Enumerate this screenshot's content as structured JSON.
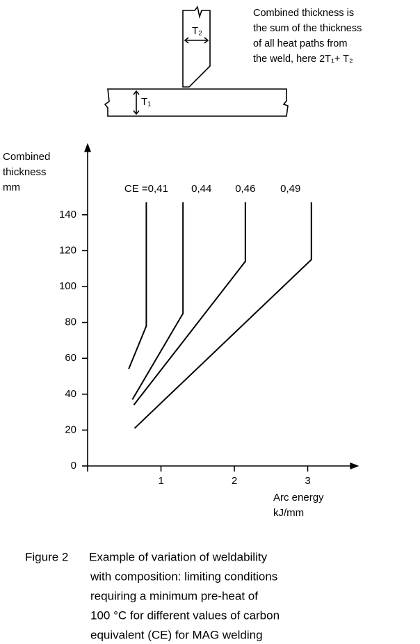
{
  "diagram": {
    "t2_label": "T₂",
    "t1_label": "T₁",
    "note": [
      "Combined thickness is",
      "the sum of the thickness",
      "of all heat paths from",
      "the weld, here 2T₁+ T₂"
    ]
  },
  "chart_data": {
    "type": "line",
    "color": "#000000",
    "ylabel": [
      "Combined",
      "thickness",
      "mm"
    ],
    "xlabel": [
      "Arc energy",
      "kJ/mm"
    ],
    "xlim": [
      0,
      3.7
    ],
    "ylim": [
      0,
      180
    ],
    "xticks": [
      1,
      2,
      3
    ],
    "yticks": [
      0,
      20,
      40,
      60,
      80,
      100,
      120,
      140
    ],
    "series": [
      {
        "name": "CE =0,41",
        "x": [
          0.56,
          0.8,
          0.8
        ],
        "values": [
          54,
          78,
          147
        ]
      },
      {
        "name": "0,44",
        "x": [
          0.61,
          1.3,
          1.3
        ],
        "values": [
          37,
          85,
          147
        ]
      },
      {
        "name": "0,46",
        "x": [
          0.63,
          2.15,
          2.15
        ],
        "values": [
          34,
          114,
          147
        ]
      },
      {
        "name": "0,49",
        "x": [
          0.64,
          3.05,
          3.05
        ],
        "values": [
          21,
          115,
          147
        ]
      }
    ]
  },
  "caption": {
    "lead": "Figure 2",
    "lines": [
      "Example of variation of weldability",
      "with composition: limiting conditions",
      "requiring a minimum pre-heat of",
      "100 °C for different values of carbon",
      "equivalent (CE) for MAG welding"
    ]
  }
}
